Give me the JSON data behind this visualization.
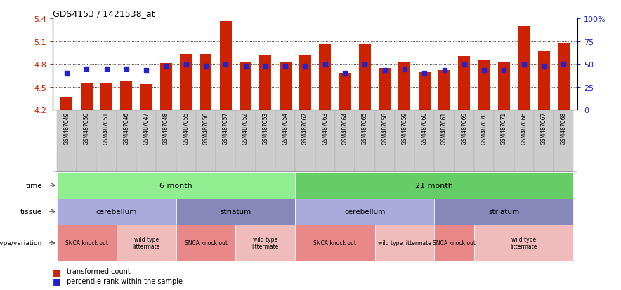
{
  "title": "GDS4153 / 1421538_at",
  "samples": [
    "GSM487049",
    "GSM487050",
    "GSM487051",
    "GSM487046",
    "GSM487047",
    "GSM487048",
    "GSM487055",
    "GSM487056",
    "GSM487057",
    "GSM487052",
    "GSM487053",
    "GSM487054",
    "GSM487062",
    "GSM487063",
    "GSM487064",
    "GSM487065",
    "GSM487058",
    "GSM487059",
    "GSM487060",
    "GSM487061",
    "GSM487069",
    "GSM487070",
    "GSM487071",
    "GSM487066",
    "GSM487067",
    "GSM487068"
  ],
  "transformed_count": [
    4.37,
    4.55,
    4.55,
    4.57,
    4.54,
    4.81,
    4.93,
    4.93,
    5.36,
    4.82,
    4.92,
    4.82,
    4.92,
    5.07,
    4.68,
    5.07,
    4.75,
    4.82,
    4.7,
    4.73,
    4.9,
    4.85,
    4.82,
    5.3,
    4.97,
    5.08
  ],
  "percentile_rank": [
    40,
    45,
    45,
    45,
    43,
    48,
    49,
    48,
    49,
    48,
    48,
    48,
    48,
    49,
    40,
    49,
    43,
    44,
    40,
    43,
    49,
    43,
    43,
    49,
    48,
    50
  ],
  "ylim": [
    4.2,
    5.4
  ],
  "yticks": [
    4.2,
    4.5,
    4.8,
    5.1,
    5.4
  ],
  "right_ylim": [
    0,
    100
  ],
  "right_yticks": [
    0,
    25,
    50,
    75,
    100
  ],
  "bar_color": "#CC2200",
  "dot_color": "#2222CC",
  "xtick_bg_color": "#CCCCCC",
  "time_color_1": "#90EE90",
  "time_color_2": "#66CC66",
  "tissue_color_1": "#AAAADD",
  "tissue_color_2": "#8888BB",
  "geno_color_pink": "#E88888",
  "geno_color_light": "#F0BBBB",
  "time_groups": [
    {
      "label": "6 month",
      "start": 0,
      "end": 11,
      "dark": false
    },
    {
      "label": "21 month",
      "start": 12,
      "end": 25,
      "dark": true
    }
  ],
  "tissue_groups": [
    {
      "label": "cerebellum",
      "start": 0,
      "end": 5,
      "light": true
    },
    {
      "label": "striatum",
      "start": 6,
      "end": 11,
      "light": false
    },
    {
      "label": "cerebellum",
      "start": 12,
      "end": 18,
      "light": true
    },
    {
      "label": "striatum",
      "start": 19,
      "end": 25,
      "light": false
    }
  ],
  "geno_groups": [
    {
      "label": "SNCA knock out",
      "start": 0,
      "end": 2,
      "pink": false
    },
    {
      "label": "wild type\nlittermate",
      "start": 3,
      "end": 5,
      "pink": true
    },
    {
      "label": "SNCA knock out",
      "start": 6,
      "end": 8,
      "pink": false
    },
    {
      "label": "wild type\nlittermate",
      "start": 9,
      "end": 11,
      "pink": true
    },
    {
      "label": "SNCA knock out",
      "start": 12,
      "end": 15,
      "pink": false
    },
    {
      "label": "wild type littermate",
      "start": 16,
      "end": 18,
      "pink": true
    },
    {
      "label": "SNCA knock out",
      "start": 19,
      "end": 20,
      "pink": false
    },
    {
      "label": "wild type\nlittermate",
      "start": 21,
      "end": 25,
      "pink": true
    }
  ],
  "legend_red": "transformed count",
  "legend_blue": "percentile rank within the sample"
}
